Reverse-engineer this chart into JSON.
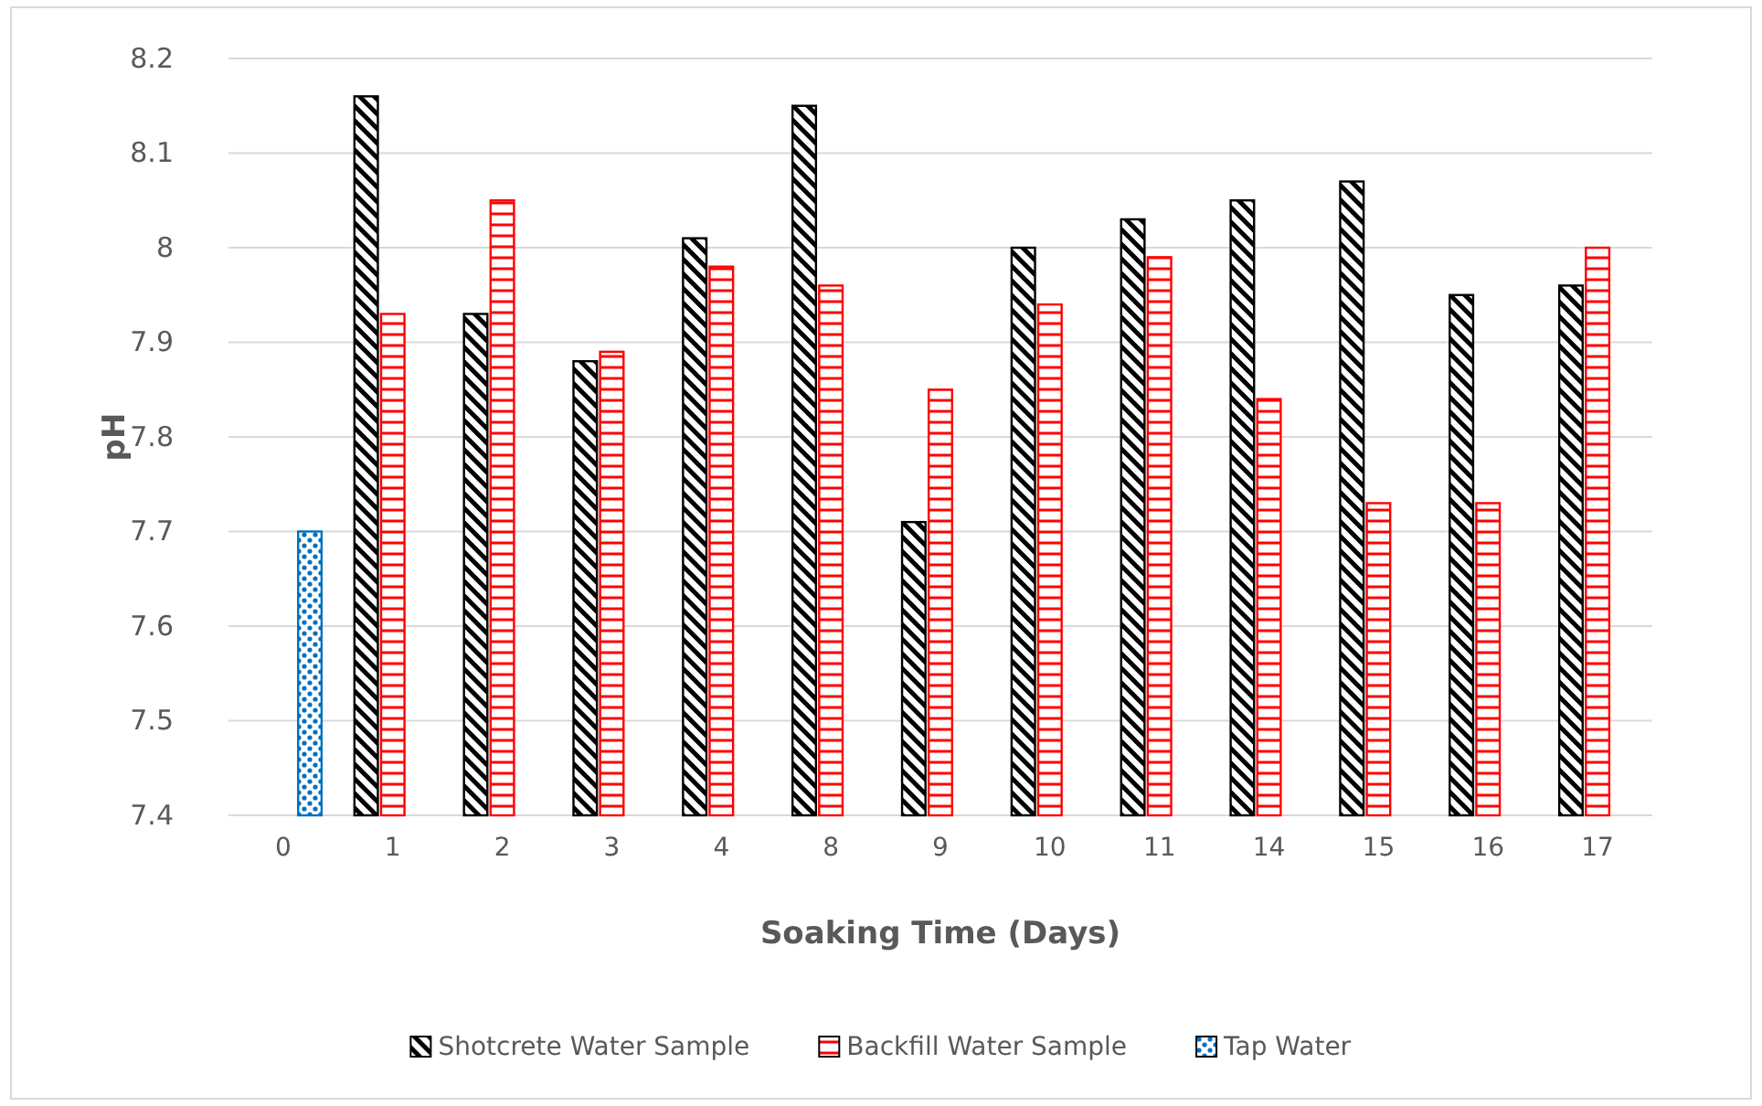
{
  "chart_data": {
    "type": "bar",
    "xlabel": "Soaking Time (Days)",
    "ylabel": "pH",
    "categories": [
      "0",
      "1",
      "2",
      "3",
      "4",
      "8",
      "9",
      "10",
      "11",
      "14",
      "15",
      "16",
      "17"
    ],
    "series": [
      {
        "name": "Shotcrete Water Sample",
        "color": "#000000",
        "values": [
          null,
          8.16,
          7.93,
          7.88,
          8.01,
          8.15,
          7.71,
          8.0,
          8.03,
          8.05,
          8.07,
          7.95,
          7.96
        ]
      },
      {
        "name": "Backfill Water Sample",
        "color": "#ff0000",
        "values": [
          null,
          7.93,
          8.05,
          7.89,
          7.98,
          7.96,
          7.85,
          7.94,
          7.99,
          7.84,
          7.73,
          7.73,
          8.0
        ]
      },
      {
        "name": "Tap Water",
        "color": "#0070c0",
        "values": [
          7.7,
          null,
          null,
          null,
          null,
          null,
          null,
          null,
          null,
          null,
          null,
          null,
          null
        ]
      }
    ],
    "ylim": [
      7.4,
      8.2
    ],
    "yticks": [
      7.4,
      7.5,
      7.6,
      7.7,
      7.8,
      7.9,
      {
        "value": 8,
        "label": "8"
      },
      8.1,
      8.2
    ],
    "grid": "y",
    "legend": "bottom"
  }
}
